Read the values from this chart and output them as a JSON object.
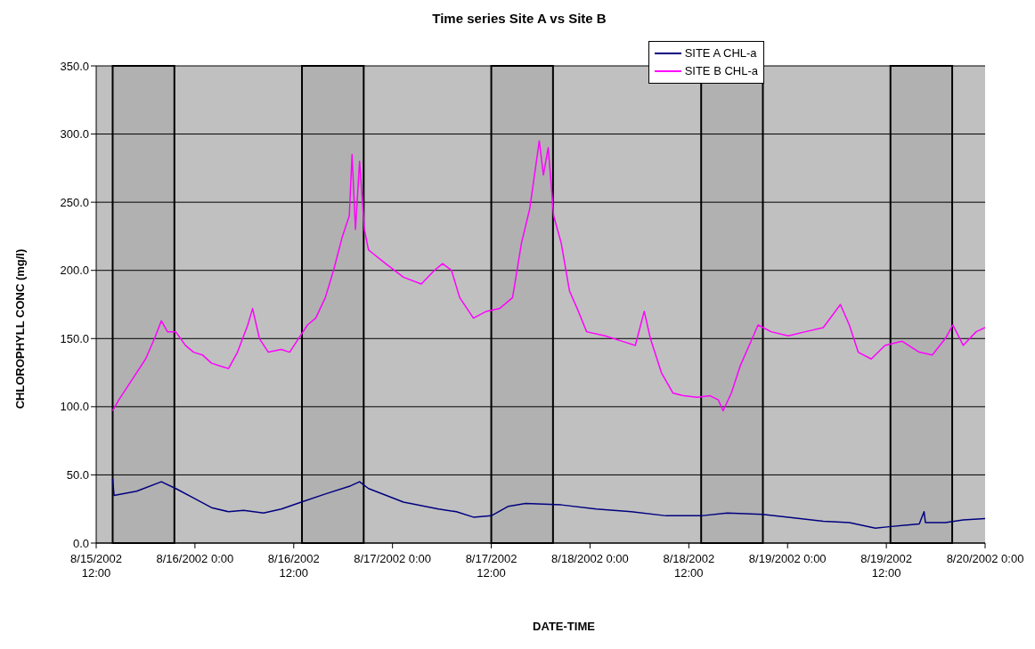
{
  "chart_data": {
    "type": "line",
    "title": "Time series Site A vs Site B",
    "xlabel": "DATE-TIME",
    "ylabel": "CHLOROPHYLL CONC (mg/l)",
    "xlim": [
      "2002-08-15T12:00",
      "2002-08-20T00:00"
    ],
    "xticks": [
      {
        "value": "2002-08-15T12:00",
        "label": "8/15/2002\n12:00"
      },
      {
        "value": "2002-08-16T00:00",
        "label": "8/16/2002 0:00"
      },
      {
        "value": "2002-08-16T12:00",
        "label": "8/16/2002\n12:00"
      },
      {
        "value": "2002-08-17T00:00",
        "label": "8/17/2002 0:00"
      },
      {
        "value": "2002-08-17T12:00",
        "label": "8/17/2002\n12:00"
      },
      {
        "value": "2002-08-18T00:00",
        "label": "8/18/2002 0:00"
      },
      {
        "value": "2002-08-18T12:00",
        "label": "8/18/2002\n12:00"
      },
      {
        "value": "2002-08-19T00:00",
        "label": "8/19/2002 0:00"
      },
      {
        "value": "2002-08-19T12:00",
        "label": "8/19/2002\n12:00"
      },
      {
        "value": "2002-08-20T00:00",
        "label": "8/20/2002 0:00"
      }
    ],
    "ylim": [
      0,
      350
    ],
    "yticks": [
      {
        "value": 0,
        "label": "0.0"
      },
      {
        "value": 50,
        "label": "50.0"
      },
      {
        "value": 100,
        "label": "100.0"
      },
      {
        "value": 150,
        "label": "150.0"
      },
      {
        "value": 200,
        "label": "200.0"
      },
      {
        "value": 250,
        "label": "250.0"
      },
      {
        "value": 300,
        "label": "300.0"
      },
      {
        "value": 350,
        "label": "350.0"
      }
    ],
    "grid": "y",
    "legend": "top right",
    "marker": "none",
    "line_style": "solid",
    "bands": [
      {
        "axis": "x",
        "from": "2002-08-15T14:00",
        "to": "2002-08-15T21:30",
        "color": "#000000"
      },
      {
        "axis": "x",
        "from": "2002-08-16T13:00",
        "to": "2002-08-16T20:30",
        "color": "#000000"
      },
      {
        "axis": "x",
        "from": "2002-08-17T12:00",
        "to": "2002-08-17T19:30",
        "color": "#000000"
      },
      {
        "axis": "x",
        "from": "2002-08-18T13:30",
        "to": "2002-08-18T21:00",
        "color": "#000000"
      },
      {
        "axis": "x",
        "from": "2002-08-19T12:30",
        "to": "2002-08-19T20:00",
        "color": "#000000"
      }
    ],
    "series": [
      {
        "name": "SITE A CHL-a",
        "color": "#000080",
        "x": [
          "2002-08-15T14:00",
          "2002-08-15T14:10",
          "2002-08-15T16:55",
          "2002-08-15T19:55",
          "2002-08-15T21:40",
          "2002-08-15T23:50",
          "2002-08-16T02:00",
          "2002-08-16T04:05",
          "2002-08-16T05:55",
          "2002-08-16T08:20",
          "2002-08-16T10:30",
          "2002-08-16T12:55",
          "2002-08-16T15:50",
          "2002-08-16T18:55",
          "2002-08-16T20:00",
          "2002-08-16T21:05",
          "2002-08-17T01:20",
          "2002-08-17T05:35",
          "2002-08-17T07:45",
          "2002-08-17T09:50",
          "2002-08-17T12:00",
          "2002-08-17T14:05",
          "2002-08-17T16:10",
          "2002-08-17T20:30",
          "2002-08-18T00:45",
          "2002-08-18T05:00",
          "2002-08-18T09:15",
          "2002-08-18T13:30",
          "2002-08-18T16:40",
          "2002-08-18T20:55",
          "2002-08-19T00:05",
          "2002-08-19T04:20",
          "2002-08-19T07:30",
          "2002-08-19T10:40",
          "2002-08-19T12:20",
          "2002-08-19T16:00",
          "2002-08-19T16:35",
          "2002-08-19T16:45",
          "2002-08-19T19:10",
          "2002-08-19T21:20",
          "2002-08-20T00:00"
        ],
        "values": [
          47,
          35,
          38,
          45,
          40,
          33,
          26,
          23,
          24,
          22,
          25,
          30,
          36,
          42,
          45,
          40,
          30,
          25,
          23,
          19,
          20,
          27,
          29,
          28,
          25,
          23,
          20,
          20,
          22,
          21,
          19,
          16,
          15,
          11,
          12,
          14,
          23,
          15,
          15,
          17,
          18
        ]
      },
      {
        "name": "SITE B CHL-a",
        "color": "#ff00ff",
        "x": [
          "2002-08-15T14:00",
          "2002-08-15T14:45",
          "2002-08-15T15:50",
          "2002-08-15T16:55",
          "2002-08-15T18:00",
          "2002-08-15T19:05",
          "2002-08-15T19:55",
          "2002-08-15T20:40",
          "2002-08-15T21:40",
          "2002-08-15T22:50",
          "2002-08-15T23:50",
          "2002-08-16T00:55",
          "2002-08-16T02:00",
          "2002-08-16T03:00",
          "2002-08-16T04:05",
          "2002-08-16T05:10",
          "2002-08-16T06:25",
          "2002-08-16T07:00",
          "2002-08-16T07:50",
          "2002-08-16T08:55",
          "2002-08-16T10:30",
          "2002-08-16T11:30",
          "2002-08-16T12:35",
          "2002-08-16T13:40",
          "2002-08-16T14:40",
          "2002-08-16T15:50",
          "2002-08-16T16:50",
          "2002-08-16T17:55",
          "2002-08-16T18:45",
          "2002-08-16T19:05",
          "2002-08-16T19:30",
          "2002-08-16T20:00",
          "2002-08-16T20:35",
          "2002-08-16T21:05",
          "2002-08-16T23:10",
          "2002-08-17T01:20",
          "2002-08-17T03:30",
          "2002-08-17T05:05",
          "2002-08-17T06:05",
          "2002-08-17T07:10",
          "2002-08-17T08:10",
          "2002-08-17T09:50",
          "2002-08-17T11:25",
          "2002-08-17T13:00",
          "2002-08-17T14:35",
          "2002-08-17T15:40",
          "2002-08-17T16:40",
          "2002-08-17T17:50",
          "2002-08-17T18:20",
          "2002-08-17T18:55",
          "2002-08-17T19:35",
          "2002-08-17T20:30",
          "2002-08-17T21:30",
          "2002-08-17T22:35",
          "2002-08-17T23:35",
          "2002-08-18T01:50",
          "2002-08-18T03:55",
          "2002-08-18T05:30",
          "2002-08-18T06:35",
          "2002-08-18T07:20",
          "2002-08-18T08:40",
          "2002-08-18T10:05",
          "2002-08-18T11:25",
          "2002-08-18T13:00",
          "2002-08-18T14:35",
          "2002-08-18T15:35",
          "2002-08-18T16:10",
          "2002-08-18T17:10",
          "2002-08-18T18:15",
          "2002-08-18T19:20",
          "2002-08-18T20:25",
          "2002-08-18T22:00",
          "2002-08-19T00:05",
          "2002-08-19T02:10",
          "2002-08-19T04:20",
          "2002-08-19T06:25",
          "2002-08-19T07:30",
          "2002-08-19T08:35",
          "2002-08-19T10:10",
          "2002-08-19T11:50",
          "2002-08-19T13:55",
          "2002-08-19T16:00",
          "2002-08-19T17:35",
          "2002-08-19T19:10",
          "2002-08-19T20:05",
          "2002-08-19T21:20",
          "2002-08-19T22:55",
          "2002-08-20T00:00"
        ],
        "values": [
          97,
          105,
          115,
          125,
          135,
          150,
          163,
          155,
          155,
          145,
          140,
          138,
          132,
          130,
          128,
          140,
          160,
          172,
          150,
          140,
          142,
          140,
          150,
          160,
          165,
          180,
          200,
          225,
          240,
          285,
          230,
          280,
          230,
          215,
          205,
          195,
          190,
          200,
          205,
          200,
          180,
          165,
          170,
          172,
          180,
          220,
          245,
          295,
          270,
          290,
          240,
          220,
          185,
          170,
          155,
          152,
          148,
          145,
          170,
          150,
          125,
          110,
          108,
          107,
          108,
          105,
          97,
          110,
          130,
          145,
          160,
          155,
          152,
          155,
          158,
          175,
          160,
          140,
          135,
          145,
          148,
          140,
          138,
          150,
          160,
          145,
          155,
          158
        ]
      }
    ]
  }
}
